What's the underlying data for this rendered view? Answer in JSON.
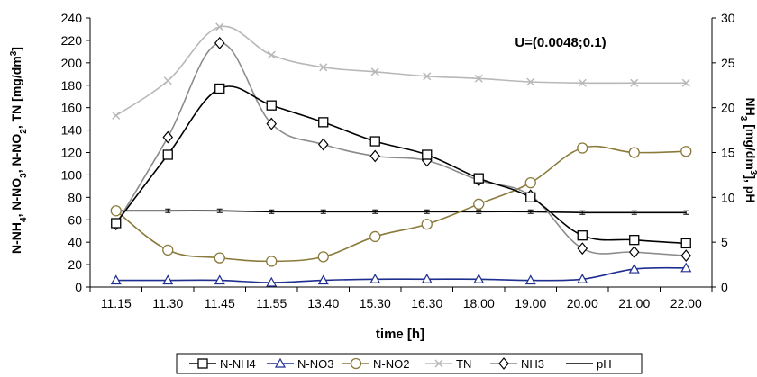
{
  "chart_data": {
    "type": "line",
    "annotation": "U=(0.0048;0.1)",
    "xlabel": "time [h]",
    "ylabel_left": "N-NH4, N-NO3, N-NO2, TN  [mg/dm3]",
    "ylabel_right": "NH3 [mg/dm3], pH",
    "ylim_left": [
      0,
      240
    ],
    "ylim_right": [
      0,
      30
    ],
    "yticks_left": [
      "0",
      "20",
      "40",
      "60",
      "80",
      "100",
      "120",
      "140",
      "160",
      "180",
      "200",
      "220",
      "240"
    ],
    "yticks_right": [
      "0",
      "5",
      "10",
      "15",
      "20",
      "25",
      "30"
    ],
    "categories": [
      "11.15",
      "11.30",
      "11.45",
      "11.55",
      "13.40",
      "15.30",
      "16.30",
      "18.00",
      "19.00",
      "20.00",
      "21.00",
      "22.00"
    ],
    "grid": false,
    "legend_position": "bottom",
    "series": [
      {
        "name": "N-NH4",
        "axis": "left",
        "marker": "square",
        "color": "#000000",
        "values": [
          57,
          118,
          177,
          162,
          147,
          130,
          118,
          97,
          80,
          46,
          42,
          39
        ]
      },
      {
        "name": "N-NO3",
        "axis": "left",
        "marker": "triangle",
        "color": "#1f2f8f",
        "values": [
          6,
          6,
          6,
          4,
          6,
          7,
          7,
          7,
          6,
          7,
          16,
          17
        ]
      },
      {
        "name": "N-NO2",
        "axis": "left",
        "marker": "circle",
        "color": "#8a7a3c",
        "values": [
          68,
          33,
          26,
          23,
          27,
          45,
          56,
          74,
          93,
          124,
          120,
          121
        ]
      },
      {
        "name": "TN",
        "axis": "left",
        "marker": "x",
        "color": "#b8b8b8",
        "values": [
          153,
          184,
          232,
          207,
          196,
          192,
          188,
          186,
          183,
          182,
          182,
          182
        ]
      },
      {
        "name": "NH3",
        "axis": "right",
        "marker": "diamond",
        "color": "#8c8c8c",
        "values": [
          7,
          16.7,
          27.2,
          18.2,
          15.9,
          14.6,
          14.1,
          11.9,
          10.2,
          4.3,
          3.9,
          3.5
        ]
      },
      {
        "name": "pH",
        "axis": "right",
        "marker": "none",
        "color": "#000000",
        "values": [
          8.5,
          8.5,
          8.5,
          8.4,
          8.4,
          8.4,
          8.4,
          8.4,
          8.4,
          8.3,
          8.3,
          8.3
        ]
      }
    ]
  }
}
